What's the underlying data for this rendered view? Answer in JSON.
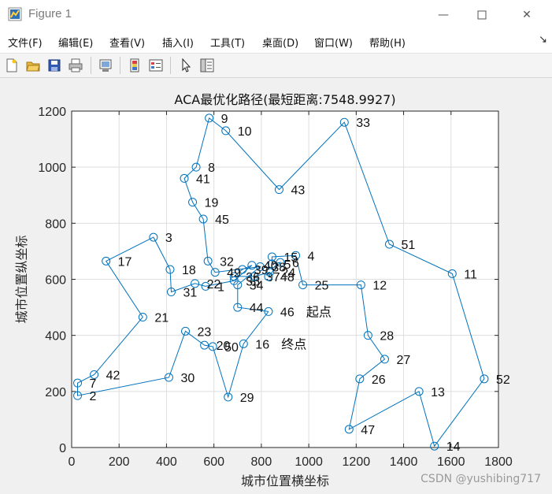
{
  "window": {
    "title": "Figure 1",
    "minimize_icon": "minimize-icon",
    "maximize_icon": "maximize-icon",
    "close_icon": "close-icon"
  },
  "menu": {
    "items": [
      "文件(F)",
      "编辑(E)",
      "查看(V)",
      "插入(I)",
      "工具(T)",
      "桌面(D)",
      "窗口(W)",
      "帮助(H)"
    ]
  },
  "toolbar": {
    "icons": [
      "new-figure-icon",
      "open-file-icon",
      "save-icon",
      "print-icon",
      "link-plot-icon",
      "insert-colorbar-icon",
      "insert-legend-icon",
      "pointer-icon",
      "property-editor-icon"
    ]
  },
  "watermark": "CSDN @yushibing717",
  "chart_data": {
    "type": "line",
    "title": "ACA最优化路径(最短距离:7548.9927)",
    "xlabel": "城市位置横坐标",
    "ylabel": "城市位置纵坐标",
    "xlim": [
      0,
      1800
    ],
    "ylim": [
      0,
      1200
    ],
    "xticks": [
      0,
      200,
      400,
      600,
      800,
      1000,
      1200,
      1400,
      1600,
      1800
    ],
    "yticks": [
      0,
      200,
      400,
      600,
      800,
      1000,
      1200
    ],
    "grid": true,
    "line_color": "#0072bd",
    "marker": "circle",
    "route": [
      46,
      44,
      34,
      49,
      22,
      31,
      18,
      3,
      17,
      21,
      42,
      7,
      2,
      30,
      23,
      20,
      50,
      29,
      16,
      46
    ],
    "route_extra": [
      [
        46,
        44
      ],
      [
        44,
        34
      ],
      [
        34,
        38
      ],
      [
        38,
        49
      ],
      [
        49,
        32
      ],
      [
        32,
        45
      ],
      [
        45,
        19
      ],
      [
        19,
        41
      ],
      [
        41,
        8
      ],
      [
        8,
        9
      ],
      [
        9,
        10
      ],
      [
        10,
        43
      ],
      [
        43,
        33
      ],
      [
        33,
        51
      ],
      [
        51,
        11
      ],
      [
        11,
        52
      ],
      [
        52,
        14
      ],
      [
        14,
        13
      ],
      [
        13,
        47
      ],
      [
        47,
        26
      ],
      [
        26,
        27
      ],
      [
        27,
        28
      ],
      [
        28,
        12
      ],
      [
        12,
        25
      ],
      [
        25,
        4
      ],
      [
        4,
        15
      ],
      [
        15,
        5
      ],
      [
        5,
        6
      ],
      [
        6,
        48
      ],
      [
        48,
        24
      ],
      [
        24,
        37
      ],
      [
        37,
        36
      ],
      [
        36,
        39
      ],
      [
        39,
        40
      ],
      [
        40,
        35
      ],
      [
        35,
        1
      ],
      [
        1,
        22
      ],
      [
        22,
        31
      ],
      [
        31,
        18
      ],
      [
        18,
        3
      ],
      [
        3,
        17
      ],
      [
        17,
        21
      ],
      [
        21,
        42
      ],
      [
        42,
        7
      ],
      [
        7,
        2
      ],
      [
        2,
        30
      ],
      [
        30,
        23
      ],
      [
        23,
        20
      ],
      [
        20,
        50
      ],
      [
        50,
        29
      ],
      [
        29,
        16
      ],
      [
        16,
        46
      ]
    ],
    "points": [
      {
        "label": "1",
        "x": 565,
        "y": 575
      },
      {
        "label": "2",
        "x": 25,
        "y": 185
      },
      {
        "label": "3",
        "x": 345,
        "y": 750
      },
      {
        "label": "4",
        "x": 945,
        "y": 685
      },
      {
        "label": "5",
        "x": 845,
        "y": 655
      },
      {
        "label": "6",
        "x": 880,
        "y": 660
      },
      {
        "label": "7",
        "x": 25,
        "y": 230
      },
      {
        "label": "8",
        "x": 525,
        "y": 1000
      },
      {
        "label": "9",
        "x": 580,
        "y": 1175
      },
      {
        "label": "10",
        "x": 650,
        "y": 1130
      },
      {
        "label": "11",
        "x": 1605,
        "y": 620
      },
      {
        "label": "12",
        "x": 1220,
        "y": 580
      },
      {
        "label": "13",
        "x": 1465,
        "y": 200
      },
      {
        "label": "14",
        "x": 1530,
        "y": 5
      },
      {
        "label": "15",
        "x": 845,
        "y": 680
      },
      {
        "label": "16",
        "x": 725,
        "y": 370
      },
      {
        "label": "17",
        "x": 145,
        "y": 665
      },
      {
        "label": "18",
        "x": 415,
        "y": 635
      },
      {
        "label": "19",
        "x": 510,
        "y": 875
      },
      {
        "label": "20",
        "x": 560,
        "y": 365
      },
      {
        "label": "21",
        "x": 300,
        "y": 465
      },
      {
        "label": "22",
        "x": 520,
        "y": 585
      },
      {
        "label": "23",
        "x": 480,
        "y": 415
      },
      {
        "label": "24",
        "x": 835,
        "y": 625
      },
      {
        "label": "25",
        "x": 975,
        "y": 580
      },
      {
        "label": "26",
        "x": 1215,
        "y": 245
      },
      {
        "label": "27",
        "x": 1320,
        "y": 315
      },
      {
        "label": "28",
        "x": 1250,
        "y": 400
      },
      {
        "label": "29",
        "x": 660,
        "y": 180
      },
      {
        "label": "30",
        "x": 410,
        "y": 250
      },
      {
        "label": "31",
        "x": 420,
        "y": 555
      },
      {
        "label": "32",
        "x": 575,
        "y": 665
      },
      {
        "label": "33",
        "x": 1150,
        "y": 1160
      },
      {
        "label": "34",
        "x": 700,
        "y": 580
      },
      {
        "label": "35",
        "x": 685,
        "y": 595
      },
      {
        "label": "36",
        "x": 685,
        "y": 610
      },
      {
        "label": "37",
        "x": 770,
        "y": 610
      },
      {
        "label": "38",
        "x": 795,
        "y": 645
      },
      {
        "label": "39",
        "x": 720,
        "y": 635
      },
      {
        "label": "40",
        "x": 760,
        "y": 650
      },
      {
        "label": "41",
        "x": 475,
        "y": 960
      },
      {
        "label": "42",
        "x": 95,
        "y": 260
      },
      {
        "label": "43",
        "x": 875,
        "y": 920
      },
      {
        "label": "44",
        "x": 700,
        "y": 500
      },
      {
        "label": "45",
        "x": 555,
        "y": 815
      },
      {
        "label": "46",
        "x": 830,
        "y": 485
      },
      {
        "label": "47",
        "x": 1170,
        "y": 65
      },
      {
        "label": "48",
        "x": 830,
        "y": 610
      },
      {
        "label": "49",
        "x": 605,
        "y": 625
      },
      {
        "label": "50",
        "x": 595,
        "y": 360
      },
      {
        "label": "51",
        "x": 1340,
        "y": 725
      },
      {
        "label": "52",
        "x": 1740,
        "y": 245
      }
    ],
    "annotations": [
      {
        "text": "起点",
        "after_label": "46"
      },
      {
        "text": "终点",
        "after_label": "16"
      }
    ]
  }
}
